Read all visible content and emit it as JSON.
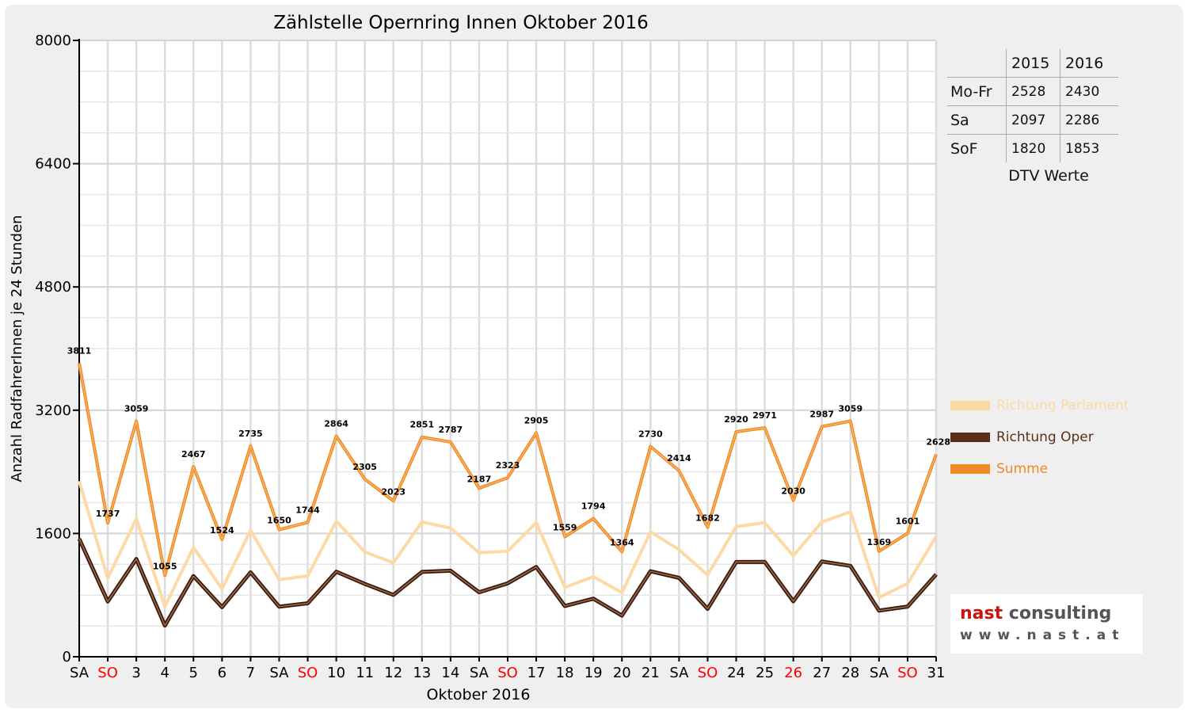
{
  "chart_data": {
    "type": "line",
    "title": "Zählstelle Opernring Innen Oktober 2016",
    "xlabel": "Oktober 2016",
    "ylabel": "Anzahl RadfahrerInnen je 24 Stunden",
    "ylim": [
      0,
      8000
    ],
    "yticks": [
      0,
      1600,
      3200,
      4800,
      6400,
      8000
    ],
    "grid": true,
    "legend_position": "right",
    "categories": [
      "SA",
      "SO",
      "3",
      "4",
      "5",
      "6",
      "7",
      "SA",
      "SO",
      "10",
      "11",
      "12",
      "13",
      "14",
      "SA",
      "SO",
      "17",
      "18",
      "19",
      "20",
      "21",
      "SA",
      "SO",
      "24",
      "25",
      "26",
      "27",
      "28",
      "SA",
      "SO",
      "31"
    ],
    "highlight_categories": [
      1,
      8,
      15,
      22,
      25,
      29
    ],
    "series": [
      {
        "name": "Richtung Parlament",
        "color": "#fdd9a6",
        "values": [
          2280,
          1020,
          1790,
          650,
          1420,
          880,
          1640,
          1000,
          1050,
          1760,
          1360,
          1220,
          1750,
          1670,
          1350,
          1370,
          1740,
          900,
          1040,
          830,
          1620,
          1390,
          1060,
          1690,
          1740,
          1310,
          1750,
          1880,
          770,
          950,
          1560
        ]
      },
      {
        "name": "Richtung Oper",
        "color": "#5a2f1a",
        "values": [
          1531,
          717,
          1269,
          405,
          1047,
          644,
          1095,
          650,
          694,
          1104,
          945,
          803,
          1101,
          1117,
          837,
          953,
          1165,
          659,
          754,
          534,
          1110,
          1024,
          622,
          1230,
          1231,
          720,
          1237,
          1179,
          599,
          651,
          1068
        ]
      },
      {
        "name": "Summe",
        "color": "#f08a24",
        "values": [
          3811,
          1737,
          3059,
          1055,
          2467,
          1524,
          2735,
          1650,
          1744,
          2864,
          2305,
          2023,
          2851,
          2787,
          2187,
          2323,
          2905,
          1559,
          1794,
          1364,
          2730,
          2414,
          1682,
          2920,
          2971,
          2030,
          2987,
          3059,
          1369,
          1601,
          2628
        ]
      }
    ]
  },
  "dtv_table": {
    "header": [
      "",
      "2015",
      "2016"
    ],
    "rows": [
      {
        "label": "Mo-Fr",
        "v2015": "2528",
        "v2016": "2430"
      },
      {
        "label": "Sa",
        "v2015": "2097",
        "v2016": "2286"
      },
      {
        "label": "SoF",
        "v2015": "1820",
        "v2016": "1853"
      }
    ],
    "caption": "DTV Werte"
  },
  "logo": {
    "name_part1": "nast",
    "name_part2": " consulting",
    "url": "www.nast.at"
  },
  "colors": {
    "highlight_text": "#ff0000",
    "frame_bg": "#efefef",
    "logo_red": "#cc1111",
    "logo_gray": "#555555"
  }
}
